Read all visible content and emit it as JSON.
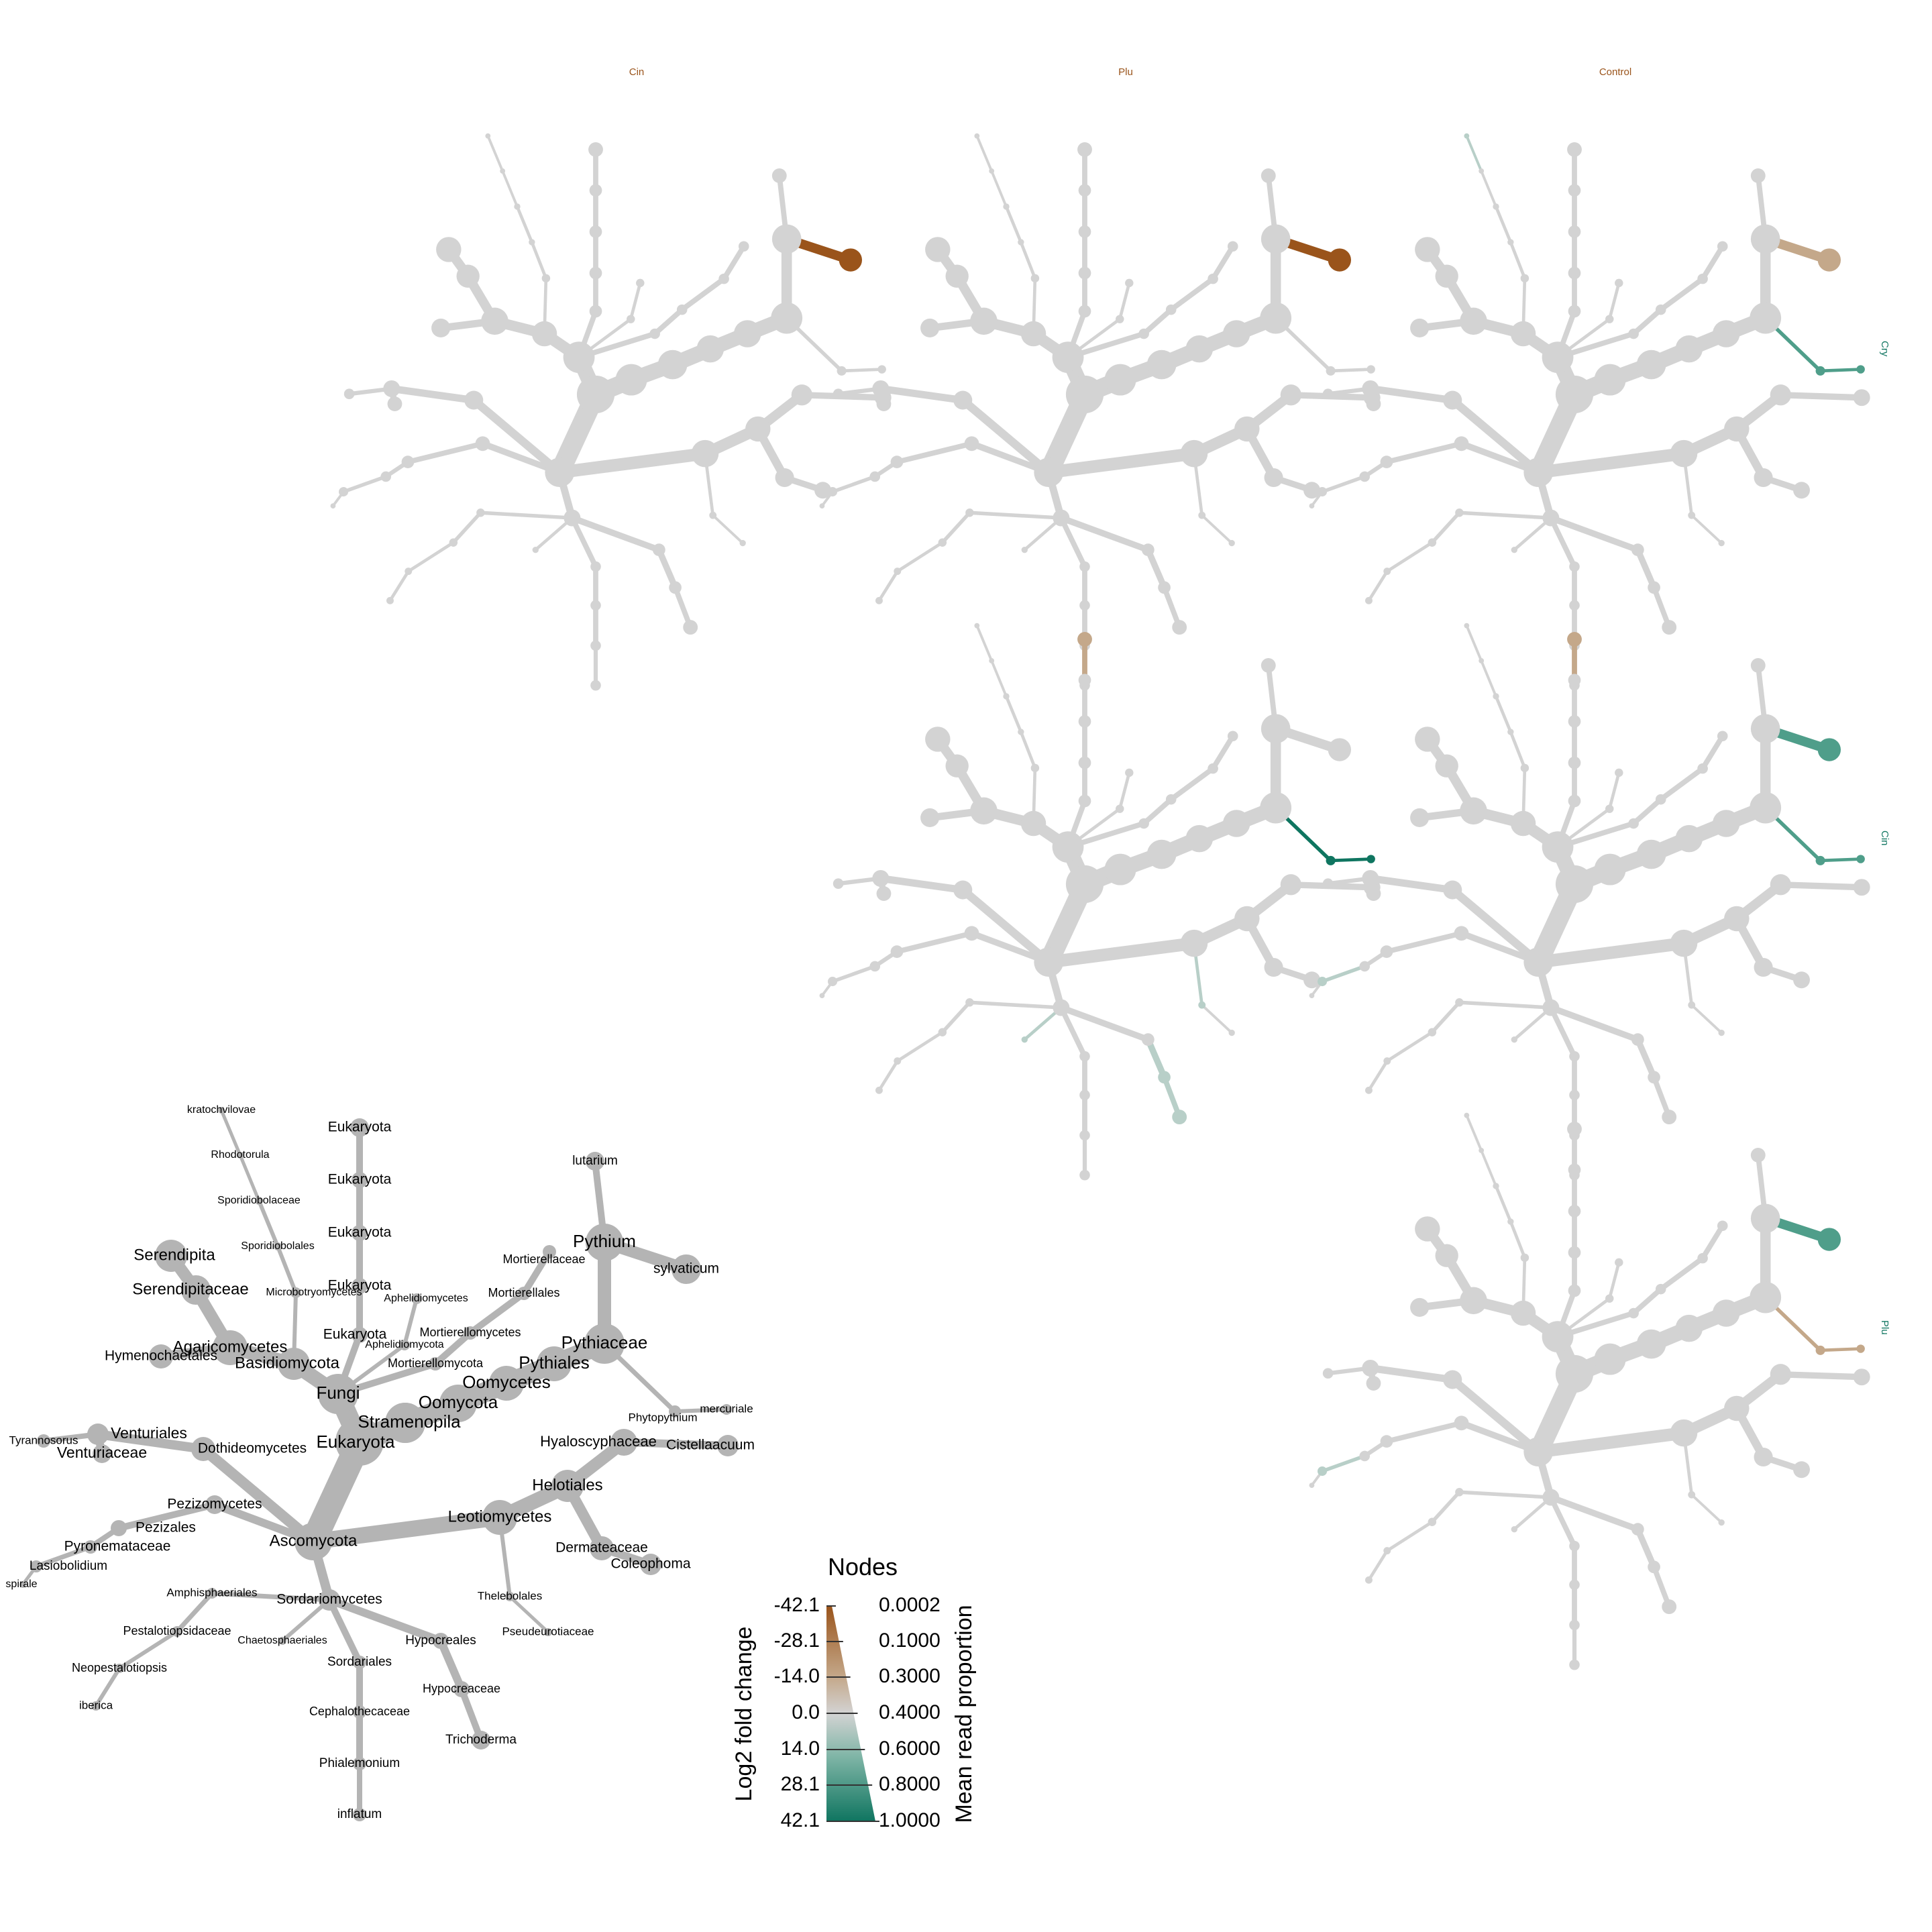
{
  "colors": {
    "neutral": "#d3d3d3",
    "key_tree": "#b4b4b4",
    "brown_strong": "#9a541b",
    "brown_light": "#c4a88a",
    "teal_strong": "#0f7560",
    "teal_mid": "#4f9e8a",
    "teal_light": "#b8cfc8",
    "title_color": "#9a541b",
    "side_color": "#0f7560"
  },
  "column_titles": [
    "Cin",
    "Plu",
    "Control"
  ],
  "row_labels": [
    "Cry",
    "Cin",
    "Plu"
  ],
  "labels": {
    "kratochvilovae": "kratochvilovae",
    "rhodotorula": "Rhodotorula",
    "sporidiobolaceae": "Sporidiobolaceae",
    "sporidiobolales": "Sporidiobolales",
    "microbotryomycetes": "Microbotryomycetes",
    "serendipita": "Serendipita",
    "serendipitaceae": "Serendipitaceae",
    "agaricomycetes": "Agaricomycetes",
    "hymenochaetales": "Hymenochaetales",
    "basidiomycota": "Basidiomycota",
    "eukaryota_1": "Eukaryota",
    "eukaryota_2": "Eukaryota",
    "eukaryota_3": "Eukaryota",
    "eukaryota_4": "Eukaryota",
    "eukaryota_5": "Eukaryota",
    "eukaryota_root": "Eukaryota",
    "fungi": "Fungi",
    "aphelidiomycetes": "Aphelidiomycetes",
    "aphelidiomycota": "Aphelidiomycota",
    "mortierellaceae": "Mortierellaceae",
    "mortierellales": "Mortierellales",
    "mortierellomycetes": "Mortierellomycetes",
    "mortierellomycota": "Mortierellomycota",
    "lutarium": "lutarium",
    "pythium": "Pythium",
    "sylvaticum": "sylvaticum",
    "pythiaceae": "Pythiaceae",
    "pythiales": "Pythiales",
    "oomycetes": "Oomycetes",
    "oomycota": "Oomycota",
    "stramenopila": "Stramenopila",
    "phytopythium": "Phytopythium",
    "mercuriale": "mercuriale",
    "tyrannosorus": "Tyrannosorus",
    "venturiales": "Venturiales",
    "venturiaceae": "Venturiaceae",
    "dothideomycetes": "Dothideomycetes",
    "hyaloscyphaceae": "Hyaloscyphaceae",
    "cistellaacuum": "Cistellaacuum",
    "helotiales": "Helotiales",
    "pezizomycetes": "Pezizomycetes",
    "pezizales": "Pezizales",
    "pyronemataceae": "Pyronemataceae",
    "lasiobolidium": "Lasiobolidium",
    "spirale": "spirale",
    "ascomycota": "Ascomycota",
    "leotiomycetes": "Leotiomycetes",
    "dermateaceae": "Dermateaceae",
    "coleophoma": "Coleophoma",
    "amphisphaeriales": "Amphisphaeriales",
    "sordariomycetes": "Sordariomycetes",
    "thelebolales": "Thelebolales",
    "pestalotiopsidaceae": "Pestalotiopsidaceae",
    "chaetosphaeriales": "Chaetosphaeriales",
    "hypocreales": "Hypocreales",
    "pseudeurotiaceae": "Pseudeurotiaceae",
    "neopestalotiopsis": "Neopestalotiopsis",
    "sordariales": "Sordariales",
    "hypocreaceae": "Hypocreaceae",
    "iberica": "iberica",
    "cephalothecaceae": "Cephalothecaceae",
    "trichoderma": "Trichoderma",
    "phialemonium": "Phialemonium",
    "inflatum": "inflatum"
  },
  "legend": {
    "title": "Nodes",
    "left_axis_title": "Log2 fold change",
    "right_axis_title": "Mean read proportion",
    "left_ticks": [
      "-42.1",
      "-28.1",
      "-14.0",
      "0.0",
      "14.0",
      "28.1",
      "42.1"
    ],
    "right_ticks": [
      "0.0002",
      "0.1000",
      "0.3000",
      "0.4000",
      "0.6000",
      "0.8000",
      "1.0000"
    ]
  },
  "highlights": {
    "r0c0": [
      {
        "edge": "E1",
        "color": "brown_strong"
      }
    ],
    "r0c1": [
      {
        "edge": "E1",
        "color": "brown_strong"
      }
    ],
    "r0c2": [
      {
        "edge": "E1",
        "color": "brown_light"
      },
      {
        "edge": "E2",
        "color": "teal_mid"
      },
      {
        "edge": "E3",
        "color": "teal_mid"
      },
      {
        "edge": "E10",
        "color": "teal_light"
      }
    ],
    "r1c1": [
      {
        "edge": "E4",
        "color": "brown_light"
      },
      {
        "edge": "E2",
        "color": "teal_strong"
      },
      {
        "edge": "E3",
        "color": "teal_strong"
      },
      {
        "edge": "E6",
        "color": "teal_light"
      },
      {
        "edge": "E7",
        "color": "teal_light"
      },
      {
        "edge": "E8",
        "color": "teal_light"
      },
      {
        "edge": "E9",
        "color": "teal_light"
      }
    ],
    "r1c2": [
      {
        "edge": "E4",
        "color": "brown_light"
      },
      {
        "edge": "E1",
        "color": "teal_mid"
      },
      {
        "edge": "E2",
        "color": "teal_mid"
      },
      {
        "edge": "E3",
        "color": "teal_mid"
      },
      {
        "edge": "E5",
        "color": "teal_light"
      }
    ],
    "r2c2": [
      {
        "edge": "E1",
        "color": "teal_mid"
      },
      {
        "edge": "E2",
        "color": "brown_light"
      },
      {
        "edge": "E3",
        "color": "brown_light"
      },
      {
        "edge": "E5",
        "color": "teal_light"
      },
      {
        "edge": "E11",
        "color": "brown_light"
      }
    ]
  }
}
